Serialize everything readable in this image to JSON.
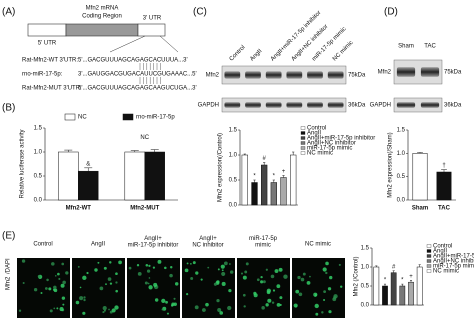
{
  "panels": {
    "a": {
      "label": "(A)",
      "gene_title": "Mfn2 mRNA",
      "region": "Coding Region",
      "utr5": "5' UTR",
      "utr3": "3' UTR",
      "sequences": [
        {
          "name": "Rat-Mfn2-WT 3'UTR:",
          "seq": "5'...GACGUUUAGCAGAGCACUUUA...3'"
        },
        {
          "name": "rno-miR-17-5p:",
          "seq": "3'...GAUGGACGUGACAUUCGUGAAAC...5'"
        },
        {
          "name": "Rat-Mfn2-MUT 3'UTR:",
          "seq": "5'...GACGUUUAGCAGAGCAAGUCUGA...3'"
        }
      ]
    },
    "c": {
      "label": "(C)",
      "lanes": [
        "Control",
        "AngII",
        "AngII+miR-17-5p inhibitor",
        "AngII+NC inhibitor",
        "miR-17-5p mimic",
        "NC mimic"
      ],
      "blots": [
        {
          "protein": "Mfn2",
          "size": "75kDa"
        },
        {
          "protein": "GAPDH",
          "size": "36kDa"
        }
      ]
    },
    "d": {
      "label": "(D)",
      "lanes": [
        "Sham",
        "TAC"
      ],
      "blots": [
        {
          "protein": "Mfn2",
          "size": "75kDa"
        },
        {
          "protein": "GAPDH",
          "size": "36kDa"
        }
      ]
    },
    "e": {
      "label": "(E)",
      "stain": [
        "Mfn2",
        "/DAPI"
      ],
      "groups": [
        "Control",
        "AngII",
        "AngII+ miR-17-5p inhibitor",
        "AngII+ NC inhibitor",
        "miR-17-5p mimic",
        "NC mimic"
      ]
    }
  },
  "chart_data": [
    {
      "type": "bar",
      "panel_label": "(B)",
      "ylabel": "Relative luciferase activity",
      "categories": [
        "Mfn2-WT",
        "Mfn2-MUT"
      ],
      "series": [
        {
          "name": "NC",
          "color": "#ffffff",
          "values": [
            1.0,
            1.0
          ],
          "errors": [
            0.04,
            0.03
          ],
          "markers": [
            null,
            null
          ]
        },
        {
          "name": "rno-miR-17-5p",
          "color": "#111111",
          "values": [
            0.6,
            1.0
          ],
          "errors": [
            0.07,
            0.05
          ],
          "markers": [
            "&",
            null
          ]
        }
      ],
      "group_notes": [
        null,
        "NC"
      ],
      "show_categories": true,
      "legend": "top",
      "ylim": [
        0,
        1.5
      ],
      "yticks": [
        {
          "value": 0,
          "label": "0.0"
        },
        0.5,
        {
          "value": 1,
          "label": "1.0"
        },
        1.5
      ]
    },
    {
      "type": "bar",
      "ylabel": "Mfn2 expression(/Control)",
      "categories": [
        "Control",
        "AngII",
        "AngII+miR-17-5p inhibitor",
        "AngII+NC inhibitor",
        "miR-17-5p mimic",
        "NC mimic"
      ],
      "values": [
        1.0,
        0.45,
        0.8,
        0.45,
        0.55,
        1.0
      ],
      "errors": [
        0.02,
        0.05,
        0.05,
        0.05,
        0.04,
        0.06
      ],
      "colors": [
        "#ffffff",
        "#111111",
        "#444444",
        "#777777",
        "#aaaaaa",
        "#ffffff"
      ],
      "markers": [
        null,
        "*",
        "#",
        "*",
        "+",
        null
      ],
      "show_categories": false,
      "legend": "right",
      "ylim": [
        0,
        1.5
      ],
      "yticks": [
        {
          "value": 0,
          "label": "0.0"
        },
        0.5,
        {
          "value": 1,
          "label": "1.0"
        },
        1.5
      ]
    },
    {
      "type": "bar",
      "ylabel": "Mfn2 expression(/Sham)",
      "categories": [
        "Sham",
        "TAC"
      ],
      "values": [
        1.0,
        0.6
      ],
      "errors": [
        0.02,
        0.05
      ],
      "colors": [
        "#ffffff",
        "#111111"
      ],
      "markers": [
        null,
        "†"
      ],
      "show_categories": true,
      "ylim": [
        0,
        1.5
      ],
      "yticks": [
        {
          "value": 0,
          "label": "0.0"
        },
        0.5,
        {
          "value": 1,
          "label": "1.0"
        },
        1.5
      ]
    },
    {
      "type": "bar",
      "ylabel": "Mfn2 (/Control)",
      "categories": [
        "Control",
        "AngII",
        "AngII+miR-17-5p inhibitor",
        "AngII+NC inhibitor",
        "miR-17-5p mimic",
        "NC mimic"
      ],
      "values": [
        1.0,
        0.5,
        0.85,
        0.5,
        0.6,
        1.0
      ],
      "errors": [
        0.03,
        0.05,
        0.05,
        0.05,
        0.05,
        0.06
      ],
      "colors": [
        "#ffffff",
        "#111111",
        "#444444",
        "#777777",
        "#aaaaaa",
        "#ffffff"
      ],
      "markers": [
        null,
        "*",
        "#",
        "*",
        "+",
        null
      ],
      "show_categories": false,
      "legend": "right",
      "ylim": [
        0,
        1.5
      ],
      "yticks": [
        {
          "value": 0,
          "label": "0.0"
        },
        0.5,
        {
          "value": 1,
          "label": "1.0"
        },
        1.5
      ]
    }
  ]
}
